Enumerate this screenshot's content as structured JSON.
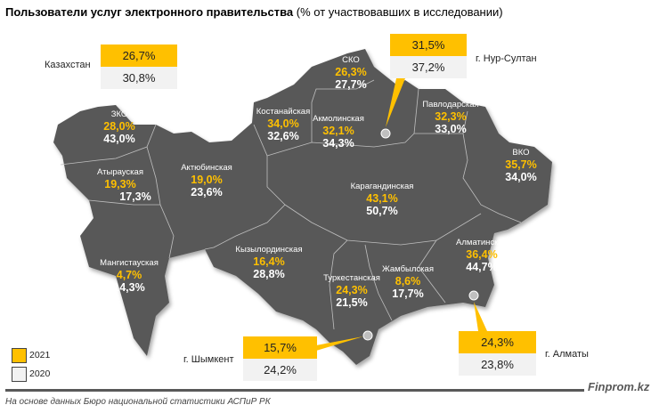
{
  "title": {
    "bold": "Пользователи услуг электронного правительства",
    "normal": "(% от участвовавших в исследовании)"
  },
  "colors": {
    "y2021": "#FFC000",
    "y2020": "#F2F2F2",
    "map": "#595959"
  },
  "legend": [
    {
      "year": "2021",
      "color": "#FFC000"
    },
    {
      "year": "2020",
      "color": "#F2F2F2"
    }
  ],
  "kazakhstan": {
    "label": "Казахстан",
    "v2021": "26,7%",
    "v2020": "30,8%"
  },
  "cities": {
    "nursultan": {
      "label": "г. Нур-Султан",
      "v2021": "31,5%",
      "v2020": "37,2%"
    },
    "shymkent": {
      "label": "г. Шымкент",
      "v2021": "15,7%",
      "v2020": "24,2%"
    },
    "almaty": {
      "label": "г. Алматы",
      "v2021": "24,3%",
      "v2020": "23,8%"
    }
  },
  "regions": [
    {
      "name": "СКО",
      "v2021": "26,3%",
      "v2020": "27,7%"
    },
    {
      "name": "Костанайская",
      "v2021": "34,0%",
      "v2020": "32,6%"
    },
    {
      "name": "Акмолинская",
      "v2021": "32,1%",
      "v2020": "34,3%"
    },
    {
      "name": "Павлодарская",
      "v2021": "32,3%",
      "v2020": "33,0%"
    },
    {
      "name": "ВКО",
      "v2021": "35,7%",
      "v2020": "34,0%"
    },
    {
      "name": "ЗКО",
      "v2021": "28,0%",
      "v2020": "43,0%"
    },
    {
      "name": "Атырауская",
      "v2021": "19,3%",
      "v2020": "17,3%"
    },
    {
      "name": "Актюбинская",
      "v2021": "19,0%",
      "v2020": "23,6%"
    },
    {
      "name": "Карагандинская",
      "v2021": "43,1%",
      "v2020": "50,7%"
    },
    {
      "name": "Мангистауская",
      "v2021": "4,7%",
      "v2020": "14,3%"
    },
    {
      "name": "Кызылординская",
      "v2021": "16,4%",
      "v2020": "28,8%"
    },
    {
      "name": "Туркестанская",
      "v2021": "24,3%",
      "v2020": "21,5%"
    },
    {
      "name": "Жамбылская",
      "v2021": "8,6%",
      "v2020": "17,7%"
    },
    {
      "name": "Алматинская",
      "v2021": "36,4%",
      "v2020": "44,7%"
    }
  ],
  "footer": {
    "brand": "Finprom.kz",
    "source": "На основе данных Бюро национальной статистики АСПиР РК"
  }
}
